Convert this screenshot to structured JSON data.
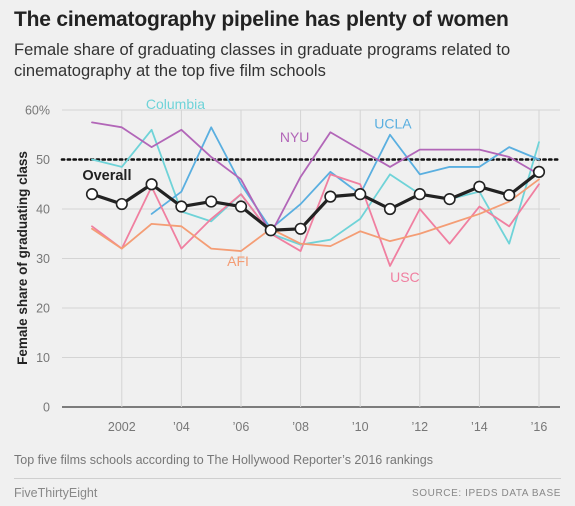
{
  "title": "The cinematography pipeline has plenty of women",
  "subtitle": "Female share of graduating classes in graduate programs related to cinematography at the top five film schools",
  "note": "Top five films schools according to The Hollywood Reporter’s 2016 rankings",
  "footer": {
    "brand": "FiveThirtyEight",
    "source": "SOURCE: IPEDS DATA BASE"
  },
  "chart_data": {
    "type": "line",
    "ylabel": "Female share of graduating class",
    "xlabel": "",
    "xlim": [
      2001,
      2016
    ],
    "ylim": [
      0,
      60
    ],
    "grid": true,
    "x_ticks": [
      {
        "value": 2002,
        "label": "2002"
      },
      {
        "value": 2004,
        "label": "’04"
      },
      {
        "value": 2006,
        "label": "’06"
      },
      {
        "value": 2008,
        "label": "’08"
      },
      {
        "value": 2010,
        "label": "’10"
      },
      {
        "value": 2012,
        "label": "’12"
      },
      {
        "value": 2014,
        "label": "’14"
      },
      {
        "value": 2016,
        "label": "’16"
      }
    ],
    "y_ticks": [
      {
        "value": 0,
        "label": "0"
      },
      {
        "value": 10,
        "label": "10"
      },
      {
        "value": 20,
        "label": "20"
      },
      {
        "value": 30,
        "label": "30"
      },
      {
        "value": 40,
        "label": "40"
      },
      {
        "value": 50,
        "label": "50"
      },
      {
        "value": 60,
        "label": "60%"
      }
    ],
    "reference_line": {
      "y": 50,
      "style": "dotted"
    },
    "x": [
      2001,
      2002,
      2003,
      2004,
      2005,
      2006,
      2007,
      2008,
      2009,
      2010,
      2011,
      2012,
      2013,
      2014,
      2015,
      2016
    ],
    "series": [
      {
        "name": "Columbia",
        "color": "#6fd3d8",
        "label_x": 2003.8,
        "label_y": 60.2,
        "values": [
          50,
          48.5,
          56,
          39.5,
          37.5,
          43,
          35,
          32.8,
          33.8,
          38,
          47,
          43,
          42,
          43.5,
          33,
          53.5
        ]
      },
      {
        "name": "UCLA",
        "color": "#5aafe0",
        "label_x": 2011.1,
        "label_y": 56.3,
        "values": [
          null,
          null,
          39,
          43.5,
          56.5,
          45,
          36,
          41,
          47.5,
          43,
          55,
          47,
          48.5,
          48.5,
          52.5,
          50
        ]
      },
      {
        "name": "NYU",
        "color": "#b266b8",
        "label_x": 2007.8,
        "label_y": 53.5,
        "values": [
          57.5,
          56.5,
          52.5,
          56,
          50.5,
          46,
          35,
          46.5,
          55.5,
          52,
          48.5,
          52,
          52,
          52,
          50.5,
          47
        ]
      },
      {
        "name": "USC",
        "color": "#f07fa0",
        "label_x": 2011.5,
        "label_y": 25.3,
        "values": [
          36.5,
          32,
          44.5,
          32,
          38,
          43,
          35,
          31.5,
          47,
          45,
          28.5,
          40,
          33,
          40.5,
          36.5,
          45
        ]
      },
      {
        "name": "AFI",
        "color": "#f49d75",
        "label_x": 2005.9,
        "label_y": 28.5,
        "values": [
          36,
          32,
          37,
          36.5,
          32,
          31.5,
          36,
          33,
          32.5,
          35.5,
          33.5,
          35,
          37,
          39,
          41.5,
          46
        ]
      },
      {
        "name": "Overall",
        "color": "#222222",
        "label_x": 2001.5,
        "label_y": 45.9,
        "values": [
          43,
          41,
          45,
          40.5,
          41.5,
          40.5,
          35.7,
          36,
          42.5,
          43,
          40,
          43,
          42,
          44.5,
          42.8,
          47.5
        ]
      }
    ]
  }
}
